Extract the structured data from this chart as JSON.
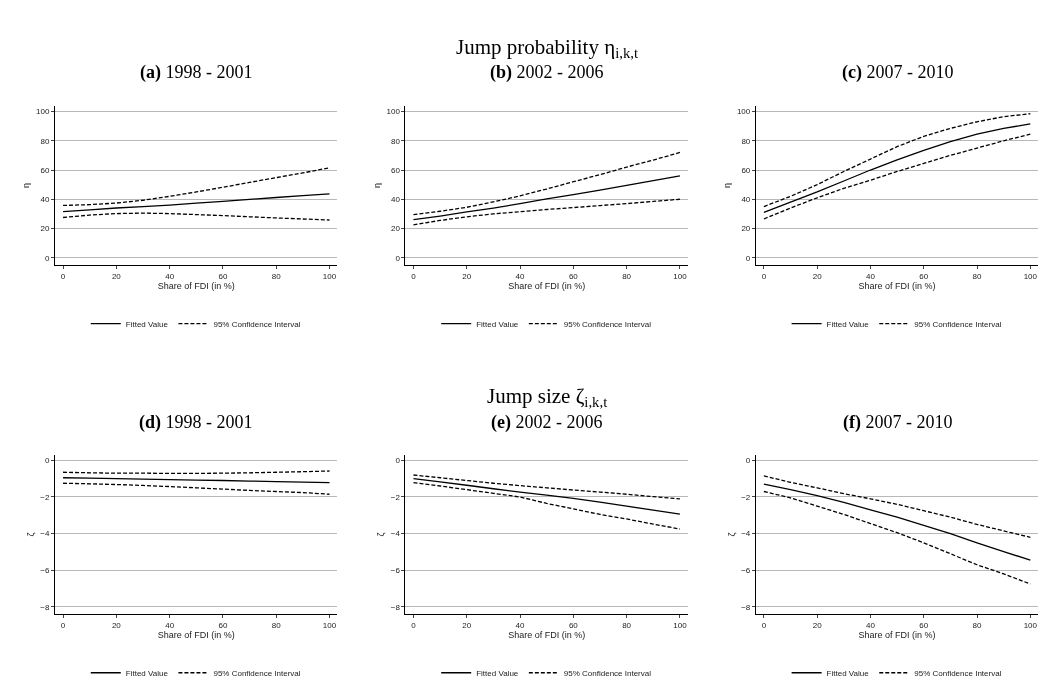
{
  "chart_data": [
    {
      "type": "line",
      "title": "(a) 1998 - 2001",
      "xlabel": "Share of FDI (in %)",
      "ylabel": "η",
      "x": [
        0,
        10,
        20,
        30,
        40,
        50,
        60,
        70,
        80,
        90,
        100
      ],
      "xlim": [
        -3,
        103
      ],
      "xticks": [
        0,
        20,
        40,
        60,
        80,
        100
      ],
      "ylim": [
        -5,
        104
      ],
      "yticks": [
        0,
        20,
        40,
        60,
        80,
        100
      ],
      "grid": "y",
      "legend": "bottom",
      "marker": "none",
      "series": [
        {
          "name": "Fitted Value",
          "color": "#000000",
          "line_style": "solid",
          "values": [
            31.5,
            32.8,
            34,
            35,
            36,
            37.3,
            38.6,
            39.9,
            41.2,
            42.5,
            43.7
          ]
        },
        {
          "name": "95% Confidence Interval",
          "color": "#000000",
          "line_style": "dashed",
          "values": [
            35.8,
            36.3,
            37.4,
            39.3,
            42,
            45,
            48.2,
            51.5,
            54.8,
            58,
            61.5
          ]
        },
        {
          "color": "#000000",
          "line_style": "dashed",
          "values": [
            27.5,
            29.2,
            30.2,
            30.5,
            30.2,
            29.5,
            28.8,
            28,
            27.2,
            26.5,
            25.8
          ]
        }
      ]
    },
    {
      "type": "line",
      "title": "(b) 2002 - 2006",
      "annotations": [
        "Jump probability η$_{i,k,t}$"
      ],
      "xlabel": "Share of FDI (in %)",
      "ylabel": "η",
      "x": [
        0,
        10,
        20,
        30,
        40,
        50,
        60,
        70,
        80,
        90,
        100
      ],
      "xlim": [
        -3,
        103
      ],
      "xticks": [
        0,
        20,
        40,
        60,
        80,
        100
      ],
      "ylim": [
        -5,
        104
      ],
      "yticks": [
        0,
        20,
        40,
        60,
        80,
        100
      ],
      "grid": "y",
      "legend": "bottom",
      "marker": "none",
      "series": [
        {
          "name": "Fitted Value",
          "color": "#000000",
          "line_style": "solid",
          "values": [
            26,
            28.5,
            31.3,
            34,
            37,
            40.2,
            43.2,
            46.3,
            49.5,
            52.8,
            56
          ]
        },
        {
          "name": "95% Confidence Interval",
          "color": "#000000",
          "line_style": "dashed",
          "values": [
            29.5,
            31.8,
            34.5,
            38.2,
            42.3,
            47,
            52,
            56.8,
            62,
            66.8,
            72
          ]
        },
        {
          "color": "#000000",
          "line_style": "dashed",
          "values": [
            22.5,
            25.5,
            28,
            30,
            31.5,
            33,
            34.3,
            35.7,
            37,
            38.5,
            40
          ]
        }
      ]
    },
    {
      "type": "line",
      "title": "(c) 2007 - 2010",
      "xlabel": "Share of FDI (in %)",
      "ylabel": "η",
      "x": [
        0,
        10,
        20,
        30,
        40,
        50,
        60,
        70,
        80,
        90,
        100
      ],
      "xlim": [
        -3,
        103
      ],
      "xticks": [
        0,
        20,
        40,
        60,
        80,
        100
      ],
      "ylim": [
        -5,
        104
      ],
      "yticks": [
        0,
        20,
        40,
        60,
        80,
        100
      ],
      "grid": "y",
      "legend": "bottom",
      "marker": "none",
      "series": [
        {
          "name": "Fitted Value",
          "color": "#000000",
          "line_style": "solid",
          "values": [
            31,
            38,
            45,
            52.5,
            60,
            67,
            73.5,
            79.5,
            84.5,
            88.5,
            91.5
          ]
        },
        {
          "name": "95% Confidence Interval",
          "color": "#000000",
          "line_style": "dashed",
          "values": [
            35,
            42,
            50,
            59,
            67.5,
            76,
            83,
            88.5,
            93,
            96.5,
            98.5
          ]
        },
        {
          "color": "#000000",
          "line_style": "dashed",
          "values": [
            26.5,
            34,
            41,
            47.5,
            53,
            59,
            64.5,
            70,
            75,
            80,
            84.5
          ]
        }
      ]
    },
    {
      "type": "line",
      "title": "(d) 1998 - 2001",
      "xlabel": "Share of FDI (in %)",
      "ylabel": "ζ",
      "x": [
        0,
        10,
        20,
        30,
        40,
        50,
        60,
        70,
        80,
        90,
        100
      ],
      "xlim": [
        -3,
        103
      ],
      "xticks": [
        0,
        20,
        40,
        60,
        80,
        100
      ],
      "ylim": [
        -8.4,
        0.3
      ],
      "yticks": [
        -8,
        -6,
        -4,
        -2,
        0
      ],
      "grid": "y",
      "legend": "bottom",
      "marker": "none",
      "series": [
        {
          "name": "Fitted Value",
          "color": "#000000",
          "line_style": "solid",
          "values": [
            -0.95,
            -0.97,
            -1.0,
            -1.02,
            -1.05,
            -1.08,
            -1.1,
            -1.13,
            -1.16,
            -1.19,
            -1.22
          ]
        },
        {
          "name": "95% Confidence Interval",
          "color": "#000000",
          "line_style": "dashed",
          "values": [
            -0.65,
            -0.68,
            -0.7,
            -0.7,
            -0.71,
            -0.71,
            -0.7,
            -0.68,
            -0.65,
            -0.62,
            -0.58
          ]
        },
        {
          "color": "#000000",
          "line_style": "dashed",
          "values": [
            -1.25,
            -1.28,
            -1.32,
            -1.37,
            -1.43,
            -1.5,
            -1.57,
            -1.64,
            -1.7,
            -1.76,
            -1.85
          ]
        }
      ]
    },
    {
      "type": "line",
      "title": "(e) 2002 - 2006",
      "annotations": [
        "Jump size ζ$_{i,k,t}$"
      ],
      "xlabel": "Share of FDI (in %)",
      "ylabel": "ζ",
      "x": [
        0,
        10,
        20,
        30,
        40,
        50,
        60,
        70,
        80,
        90,
        100
      ],
      "xlim": [
        -3,
        103
      ],
      "xticks": [
        0,
        20,
        40,
        60,
        80,
        100
      ],
      "ylim": [
        -8.4,
        0.3
      ],
      "yticks": [
        -8,
        -6,
        -4,
        -2,
        0
      ],
      "grid": "y",
      "legend": "bottom",
      "marker": "none",
      "series": [
        {
          "name": "Fitted Value",
          "color": "#000000",
          "line_style": "solid",
          "values": [
            -1.0,
            -1.18,
            -1.36,
            -1.55,
            -1.73,
            -1.9,
            -2.08,
            -2.28,
            -2.5,
            -2.72,
            -2.93
          ]
        },
        {
          "name": "95% Confidence Interval",
          "color": "#000000",
          "line_style": "dashed",
          "values": [
            -0.8,
            -0.95,
            -1.1,
            -1.25,
            -1.38,
            -1.5,
            -1.62,
            -1.73,
            -1.85,
            -1.98,
            -2.1
          ]
        },
        {
          "color": "#000000",
          "line_style": "dashed",
          "values": [
            -1.22,
            -1.4,
            -1.6,
            -1.8,
            -2.0,
            -2.35,
            -2.65,
            -2.95,
            -3.2,
            -3.48,
            -3.75
          ]
        }
      ]
    },
    {
      "type": "line",
      "title": "(f) 2007 - 2010",
      "xlabel": "Share of FDI (in %)",
      "ylabel": "ζ",
      "x": [
        0,
        10,
        20,
        30,
        40,
        50,
        60,
        70,
        80,
        90,
        100
      ],
      "xlim": [
        -3,
        103
      ],
      "xticks": [
        0,
        20,
        40,
        60,
        80,
        100
      ],
      "ylim": [
        -8.4,
        0.3
      ],
      "yticks": [
        -8,
        -6,
        -4,
        -2,
        0
      ],
      "grid": "y",
      "legend": "bottom",
      "marker": "none",
      "series": [
        {
          "name": "Fitted Value",
          "color": "#000000",
          "line_style": "solid",
          "values": [
            -1.3,
            -1.6,
            -1.92,
            -2.3,
            -2.7,
            -3.1,
            -3.55,
            -4.0,
            -4.5,
            -4.98,
            -5.45
          ]
        },
        {
          "name": "95% Confidence Interval",
          "color": "#000000",
          "line_style": "dashed",
          "values": [
            -0.85,
            -1.2,
            -1.5,
            -1.82,
            -2.1,
            -2.4,
            -2.75,
            -3.1,
            -3.5,
            -3.85,
            -4.2
          ]
        },
        {
          "color": "#000000",
          "line_style": "dashed",
          "values": [
            -1.7,
            -2.05,
            -2.5,
            -2.95,
            -3.45,
            -3.95,
            -4.5,
            -5.1,
            -5.7,
            -6.2,
            -6.75
          ]
        }
      ]
    }
  ]
}
